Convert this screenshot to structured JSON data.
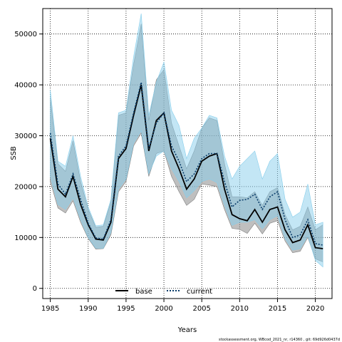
{
  "chart_data": {
    "type": "line",
    "xlabel": "Years",
    "ylabel": "SSB",
    "xlim": [
      1984,
      2022.2
    ],
    "ylim": [
      -2000,
      55000
    ],
    "x_ticks": [
      1985,
      1990,
      1995,
      2000,
      2005,
      2010,
      2015,
      2020
    ],
    "y_ticks": [
      0,
      10000,
      20000,
      30000,
      40000,
      50000
    ],
    "grid": true,
    "legend_position": "bottom-center",
    "footnote": "stockassessment.org, WBcod_2021_nr, r14360 , git: 69d926d0437d",
    "x": [
      1985,
      1986,
      1987,
      1988,
      1989,
      1990,
      1991,
      1992,
      1993,
      1994,
      1995,
      1996,
      1997,
      1998,
      1999,
      2000,
      2001,
      2002,
      2003,
      2004,
      2005,
      2006,
      2007,
      2008,
      2009,
      2010,
      2011,
      2012,
      2013,
      2014,
      2015,
      2016,
      2017,
      2018,
      2019,
      2020,
      2021
    ],
    "series": [
      {
        "name": "base",
        "color": "#000000",
        "band_color": "#808080",
        "values": [
          29500,
          19500,
          18000,
          22000,
          16500,
          12500,
          9700,
          9500,
          13000,
          25500,
          27500,
          34000,
          40000,
          27000,
          33000,
          34500,
          27000,
          23500,
          19500,
          21500,
          25000,
          26000,
          26500,
          19500,
          14500,
          13700,
          13300,
          15500,
          13000,
          15500,
          16000,
          11500,
          9000,
          9500,
          12500,
          8000,
          7800
        ],
        "lower": [
          21000,
          15800,
          14800,
          17200,
          13000,
          9800,
          7700,
          7800,
          10500,
          19000,
          21000,
          28000,
          30500,
          22000,
          26500,
          27000,
          22000,
          19000,
          16300,
          17500,
          20500,
          20300,
          20000,
          15500,
          11800,
          11600,
          10800,
          12800,
          10700,
          12800,
          13300,
          9300,
          7000,
          7300,
          10000,
          5800,
          5200
        ],
        "upper": [
          37500,
          24500,
          23000,
          29000,
          21000,
          15500,
          12000,
          12200,
          17000,
          34000,
          34500,
          44000,
          52000,
          33000,
          41000,
          43000,
          32500,
          28000,
          23500,
          27000,
          31500,
          33500,
          33000,
          24500,
          18000,
          18000,
          17800,
          19000,
          16300,
          19000,
          19800,
          14500,
          11500,
          12200,
          16000,
          11500,
          12500
        ]
      },
      {
        "name": "current",
        "color": "#0a3d6b",
        "band_color": "#87ceeb",
        "values": [
          30500,
          20500,
          18500,
          22500,
          17500,
          12800,
          9900,
          9700,
          13500,
          26000,
          28000,
          34500,
          40500,
          27500,
          32500,
          34500,
          28000,
          25000,
          21000,
          22500,
          25500,
          26500,
          26500,
          21000,
          16000,
          17300,
          17500,
          18500,
          15500,
          18000,
          19000,
          13500,
          10000,
          10500,
          13500,
          8800,
          8500
        ],
        "lower": [
          22000,
          16500,
          15500,
          17800,
          13500,
          10000,
          7900,
          7900,
          11000,
          19500,
          21500,
          28500,
          31000,
          22500,
          26000,
          27000,
          23500,
          21000,
          17800,
          19200,
          21000,
          21500,
          20800,
          16300,
          12400,
          13000,
          13000,
          13500,
          11700,
          13500,
          14300,
          9800,
          7500,
          7800,
          10300,
          5500,
          4200
        ],
        "upper": [
          39000,
          25000,
          24000,
          30000,
          22000,
          16000,
          12300,
          12500,
          17500,
          34500,
          35000,
          45500,
          54000,
          34000,
          40500,
          44500,
          35000,
          32000,
          25500,
          29500,
          31500,
          34000,
          33500,
          26000,
          21500,
          24000,
          25500,
          27000,
          21500,
          25000,
          26500,
          17500,
          14000,
          15000,
          20500,
          12500,
          13000
        ]
      }
    ]
  }
}
